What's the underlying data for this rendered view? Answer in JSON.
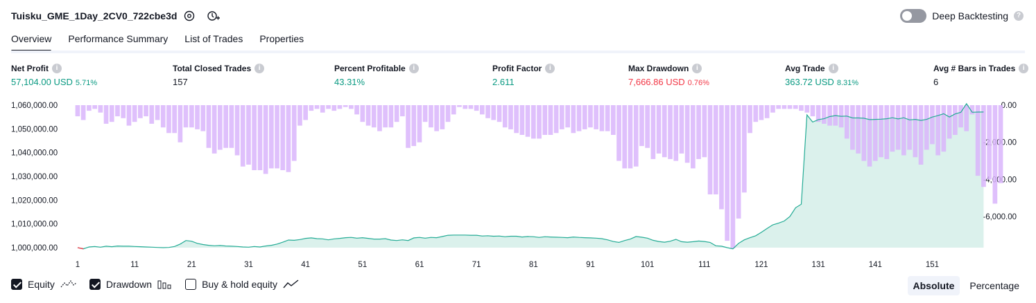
{
  "header": {
    "strategy_name": "Tuisku_GME_1Day_2CV0_722cbe3d",
    "settings_icon": "gear-icon",
    "alert_icon": "add-alert-icon",
    "deep_backtesting_label": "Deep Backtesting",
    "deep_backtesting_on": false
  },
  "tabs": [
    {
      "label": "Overview",
      "active": true
    },
    {
      "label": "Performance Summary",
      "active": false
    },
    {
      "label": "List of Trades",
      "active": false
    },
    {
      "label": "Properties",
      "active": false
    }
  ],
  "stats": {
    "net_profit": {
      "label": "Net Profit",
      "value": "57,104.00 USD",
      "pct": "5.71%"
    },
    "total_closed_trades": {
      "label": "Total Closed Trades",
      "value": "157"
    },
    "percent_profitable": {
      "label": "Percent Profitable",
      "value": "43.31%"
    },
    "profit_factor": {
      "label": "Profit Factor",
      "value": "2.611"
    },
    "max_drawdown": {
      "label": "Max Drawdown",
      "value": "7,666.86 USD",
      "pct": "0.76%"
    },
    "avg_trade": {
      "label": "Avg Trade",
      "value": "363.72 USD",
      "pct": "8.31%"
    },
    "avg_bars": {
      "label": "Avg # Bars in Trades",
      "value": "6"
    }
  },
  "colors": {
    "positive": "#089981",
    "negative": "#f23645",
    "equity_line": "#22ab94",
    "equity_fill": "#d7f0ea",
    "drawdown_bar": "#d9b5fb"
  },
  "chart_data": {
    "type": "area",
    "x_ticks": [
      "1",
      "11",
      "21",
      "31",
      "41",
      "51",
      "61",
      "71",
      "81",
      "91",
      "101",
      "111",
      "121",
      "131",
      "141",
      "151"
    ],
    "left_axis_ticks": [
      "1,060,000.00",
      "1,050,000.00",
      "1,040,000.00",
      "1,030,000.00",
      "1,020,000.00",
      "1,010,000.00",
      "1,000,000.00"
    ],
    "right_axis_ticks": [
      "0.00",
      "-2,000.00",
      "-4,000.00",
      "-6,000.00"
    ],
    "left_ylim": [
      1000000,
      1060000
    ],
    "right_ylim": [
      -7666.86,
      0
    ],
    "x_range": [
      1,
      158
    ],
    "series": [
      {
        "name": "Equity",
        "axis": "left",
        "values": [
          1000000,
          999500,
          1000300,
          1000500,
          1000200,
          1000600,
          1000400,
          1000700,
          1000600,
          1000600,
          1000500,
          1000400,
          1000300,
          1000200,
          1000100,
          1000000,
          1000100,
          1000500,
          1001500,
          1003000,
          1002700,
          1001800,
          1001300,
          1001000,
          1000800,
          1000900,
          1000700,
          1000600,
          1000500,
          1000300,
          1000200,
          1000500,
          1000300,
          1000700,
          1001000,
          1001500,
          1002300,
          1003200,
          1003100,
          1003400,
          1003900,
          1004100,
          1003800,
          1003700,
          1003300,
          1003700,
          1003900,
          1004200,
          1004300,
          1004000,
          1004200,
          1003900,
          1003600,
          1003600,
          1003800,
          1003200,
          1003000,
          1003300,
          1003000,
          1004100,
          1004300,
          1004000,
          1004300,
          1004200,
          1004700,
          1005200,
          1005300,
          1005300,
          1005300,
          1005200,
          1005200,
          1004900,
          1005000,
          1004800,
          1004900,
          1004600,
          1004800,
          1004800,
          1004500,
          1004700,
          1004600,
          1004300,
          1004600,
          1004500,
          1004400,
          1004300,
          1004200,
          1004500,
          1004300,
          1004200,
          1004100,
          1004000,
          1003800,
          1003300,
          1002600,
          1002200,
          1003000,
          1003600,
          1004700,
          1004400,
          1004000,
          1003100,
          1002600,
          1002300,
          1002700,
          1003500,
          1002500,
          1002300,
          1002500,
          1002800,
          1002600,
          1002200,
          1000800,
          1000600,
          1000000,
          999500,
          1001800,
          1003300,
          1004200,
          1005000,
          1006500,
          1008100,
          1009600,
          1010300,
          1011200,
          1013100,
          1016800,
          1018300,
          1055900,
          1052900,
          1053900,
          1054300,
          1055200,
          1055600,
          1055300,
          1055400,
          1054600,
          1054600,
          1054500,
          1053900,
          1054000,
          1054100,
          1054300,
          1054700,
          1054200,
          1054700,
          1053800,
          1054000,
          1053600,
          1054000,
          1055000,
          1055600,
          1056400,
          1055000,
          1056300,
          1057000,
          1060600,
          1057000,
          1057100,
          1057104
        ],
        "color": "#22ab94"
      },
      {
        "name": "Drawdown",
        "axis": "right",
        "values": [
          -600,
          -800,
          -300,
          -200,
          -400,
          -1000,
          -900,
          -600,
          -700,
          -1100,
          -900,
          -700,
          -600,
          -1000,
          -800,
          -1200,
          -1500,
          -1500,
          -2000,
          -1200,
          -1200,
          -1300,
          -1400,
          -2300,
          -2600,
          -2400,
          -2300,
          -2300,
          -2700,
          -3300,
          -3200,
          -3500,
          -3500,
          -3700,
          -3400,
          -3400,
          -3500,
          -3600,
          -3000,
          -1100,
          -800,
          -300,
          -200,
          -400,
          -200,
          -300,
          -200,
          -100,
          -200,
          -500,
          -900,
          -1100,
          -1200,
          -1400,
          -1200,
          -1200,
          -900,
          -600,
          -2300,
          -2200,
          -2000,
          -900,
          -1200,
          -1400,
          -1300,
          -900,
          -500,
          -100,
          -200,
          -200,
          -300,
          -500,
          -700,
          -800,
          -900,
          -1200,
          -1300,
          -1500,
          -1600,
          -1700,
          -1800,
          -1800,
          -1600,
          -1600,
          -1500,
          -1300,
          -1200,
          -1500,
          -1400,
          -1300,
          -1200,
          -1300,
          -1400,
          -1400,
          -1600,
          -3000,
          -3400,
          -3400,
          -3300,
          -2200,
          -2300,
          -2900,
          -2600,
          -2800,
          -2900,
          -3000,
          -2600,
          -3100,
          -3400,
          -2900,
          -2800,
          -4800,
          -4800,
          -5600,
          -7300,
          -7700,
          -6100,
          -4700,
          -1500,
          -900,
          -800,
          -700,
          -400,
          -200,
          -200,
          -200,
          -200,
          -300,
          -400,
          -600,
          -900,
          -1000,
          -1100,
          -1100,
          -1200,
          -1800,
          -2400,
          -2600,
          -3000,
          -3300,
          -3000,
          -2800,
          -2900,
          -2500,
          -2400,
          -2700,
          -2400,
          -2800,
          -3200,
          -2400,
          -2100,
          -2700,
          -2500,
          -1800,
          -1600,
          -1200,
          -1400,
          -500,
          -3800,
          -4400,
          -4000,
          -5300,
          -4200
        ],
        "color": "#d9b5fb"
      }
    ]
  },
  "legend": {
    "equity": {
      "label": "Equity",
      "checked": true
    },
    "drawdown": {
      "label": "Drawdown",
      "checked": true
    },
    "buy_hold": {
      "label": "Buy & hold equity",
      "checked": false
    }
  },
  "mode": {
    "absolute": "Absolute",
    "percentage": "Percentage",
    "selected": "absolute"
  }
}
